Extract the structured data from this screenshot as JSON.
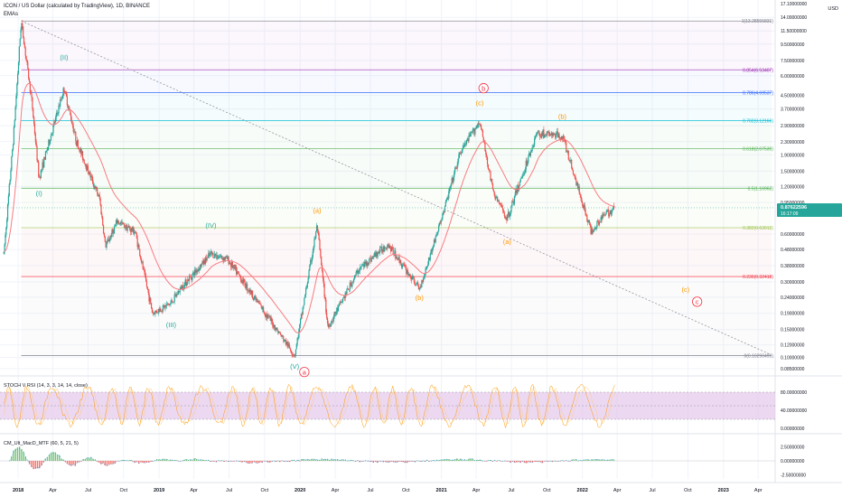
{
  "header": {
    "symbol_line": "ICON / US Dollar (calculated by TradingView), 1D, BINANCE",
    "indicator": "EMAs"
  },
  "price_axis": {
    "top_partial": "17.10000000",
    "currency": "USD",
    "ticks": [
      "14.00000000",
      "11.50000000",
      "9.50000000",
      "7.50000000",
      "6.00000000",
      "4.50000000",
      "3.70000000",
      "2.90000000",
      "2.30000000",
      "1.90000000",
      "1.50000000",
      "1.20000000",
      "0.95000000",
      "0.60000000",
      "0.48000000",
      "0.38000000",
      "0.30000000",
      "0.24000000",
      "0.19000000",
      "0.15000000",
      "0.12000000",
      "0.10000000",
      "0.08500000"
    ],
    "current_price": "0.87622596",
    "countdown": "16:17:09"
  },
  "time_axis": [
    "2018",
    "Apr",
    "Jul",
    "Oct",
    "2019",
    "Apr",
    "Jul",
    "Oct",
    "2020",
    "Apr",
    "Jul",
    "Oct",
    "2021",
    "Apr",
    "Jul",
    "Oct",
    "2022",
    "Apr",
    "Jul",
    "Oct",
    "2023",
    "Apr"
  ],
  "fib_levels": [
    {
      "label": "1(13.28555831)",
      "color": "#787b86"
    },
    {
      "label": "0.854(6.53407)",
      "color": "#9c27b0"
    },
    {
      "label": "0.786(4.69537)",
      "color": "#2962ff"
    },
    {
      "label": "0.702(3.12166)",
      "color": "#00bcd4"
    },
    {
      "label": "0.618(2.07539)",
      "color": "#4caf50"
    },
    {
      "label": "0.5(1.16963)",
      "color": "#4caf50"
    },
    {
      "label": "0.382(0.63913)",
      "color": "#9bc34a"
    },
    {
      "label": "0.236(0.32418)",
      "color": "#f23645"
    },
    {
      "label": "0(0.10290499)",
      "color": "#787b86"
    }
  ],
  "wave_labels": {
    "teal": [
      "(I)",
      "(II)",
      "(III)",
      "(IV)",
      "(V)"
    ],
    "orange": [
      "(a)",
      "(b)",
      "(c)",
      "(a)",
      "(b)",
      "(c)"
    ],
    "red_circled": [
      "a",
      "b",
      "c"
    ]
  },
  "stoch": {
    "title": "STOCH V RSI (14, 3, 3, 14, 14, close)",
    "ticks": [
      "80.00000000",
      "40.00000000",
      "0.00000000"
    ]
  },
  "macd": {
    "title": "CM_Ult_MacD_MTF (60, 5, 21, 5)",
    "ticks": [
      "2.50000000",
      "0.00000000",
      "-2.50000000"
    ]
  },
  "colors": {
    "candle_up": "#26a69a",
    "candle_down": "#ef5350",
    "ema": "#f77c80",
    "stoch_line": "#ff9800",
    "stoch_band": "#e1bee7",
    "wave_teal": "#26a69a",
    "wave_orange": "#ff9800",
    "wave_red": "#f23645",
    "price_tag": "#26a69a"
  },
  "chart_data": {
    "type": "line",
    "title": "ICON / US Dollar (calculated by TradingView), 1D, BINANCE",
    "y_scale": "log",
    "ylim": [
      0.085,
      17.1
    ],
    "xlim": [
      "2017-11-15",
      "2023-05-15"
    ],
    "series": [
      {
        "name": "",
        "x": [
          "2017-11-25",
          "2017-12-20",
          "2018-01-09",
          "2018-02-06",
          "2018-02-24",
          "2018-04-30",
          "2018-06-01",
          "2018-07-31",
          "2018-08-15",
          "2018-09-15",
          "2018-10-31",
          "2018-12-15",
          "2019-02-01",
          "2019-03-01",
          "2019-05-15",
          "2019-06-26",
          "2019-09-15",
          "2019-12-18",
          "2020-02-14",
          "2020-03-13",
          "2020-06-01",
          "2020-08-15",
          "2020-11-05",
          "2021-01-01",
          "2021-02-20",
          "2021-04-10",
          "2021-05-15",
          "2021-06-20",
          "2021-09-05",
          "2021-11-10",
          "2022-01-24",
          "2022-02-15",
          "2022-03-25"
        ],
        "values": [
          0.45,
          2.5,
          13.3,
          4.0,
          1.35,
          5.0,
          2.3,
          1.0,
          0.5,
          0.72,
          0.62,
          0.19,
          0.22,
          0.28,
          0.45,
          0.42,
          0.22,
          0.103,
          0.68,
          0.155,
          0.36,
          0.52,
          0.27,
          0.75,
          2.0,
          3.1,
          1.1,
          0.75,
          2.6,
          2.5,
          0.62,
          0.75,
          0.88
        ]
      }
    ],
    "fib_retracement": {
      "high": 13.28555831,
      "low": 0.10290499,
      "levels": [
        1,
        0.854,
        0.786,
        0.702,
        0.618,
        0.5,
        0.382,
        0.236,
        0
      ]
    }
  }
}
